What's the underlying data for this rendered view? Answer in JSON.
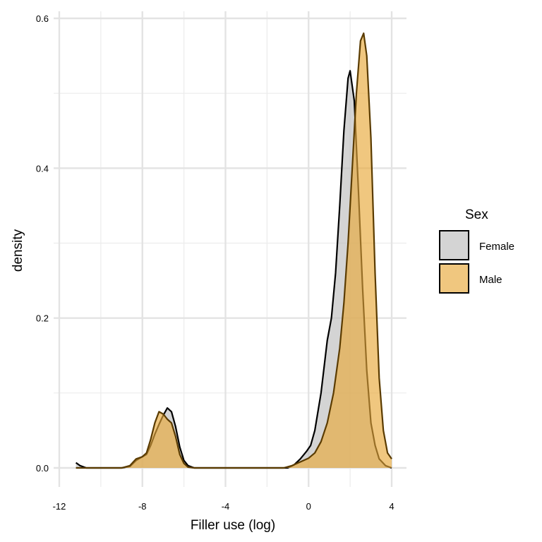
{
  "chart_data": {
    "type": "area",
    "subtype": "density",
    "title": "",
    "xlabel": "Filler use (log)",
    "ylabel": "density",
    "xlim": [
      -12,
      4
    ],
    "ylim": [
      0,
      0.6
    ],
    "x_ticks": [
      -12,
      -8,
      -4,
      0,
      4
    ],
    "x_tick_labels": [
      "-12",
      "-8",
      "-4",
      "0",
      "4"
    ],
    "y_ticks": [
      0,
      0.2,
      0.4,
      0.6
    ],
    "y_tick_labels": [
      "0.0",
      "0.2",
      "0.4",
      "0.6"
    ],
    "grid": true,
    "legend": {
      "title": "Sex",
      "position": "right"
    },
    "series": [
      {
        "name": "Female",
        "color": "#bdbdbd",
        "points": [
          [
            -11.2,
            0.007
          ],
          [
            -11.0,
            0.003
          ],
          [
            -10.7,
            0.0
          ],
          [
            -9.0,
            0.0
          ],
          [
            -8.6,
            0.002
          ],
          [
            -8.3,
            0.01
          ],
          [
            -8.0,
            0.015
          ],
          [
            -7.8,
            0.018
          ],
          [
            -7.6,
            0.03
          ],
          [
            -7.4,
            0.045
          ],
          [
            -7.2,
            0.058
          ],
          [
            -7.0,
            0.07
          ],
          [
            -6.8,
            0.08
          ],
          [
            -6.6,
            0.075
          ],
          [
            -6.4,
            0.055
          ],
          [
            -6.2,
            0.028
          ],
          [
            -6.0,
            0.01
          ],
          [
            -5.8,
            0.003
          ],
          [
            -5.5,
            0.0
          ],
          [
            -1.0,
            0.0
          ],
          [
            -0.7,
            0.004
          ],
          [
            -0.4,
            0.012
          ],
          [
            -0.1,
            0.022
          ],
          [
            0.1,
            0.03
          ],
          [
            0.3,
            0.05
          ],
          [
            0.6,
            0.1
          ],
          [
            0.9,
            0.17
          ],
          [
            1.1,
            0.2
          ],
          [
            1.3,
            0.26
          ],
          [
            1.5,
            0.35
          ],
          [
            1.7,
            0.45
          ],
          [
            1.9,
            0.52
          ],
          [
            2.0,
            0.53
          ],
          [
            2.2,
            0.49
          ],
          [
            2.4,
            0.37
          ],
          [
            2.6,
            0.24
          ],
          [
            2.8,
            0.13
          ],
          [
            3.0,
            0.06
          ],
          [
            3.2,
            0.03
          ],
          [
            3.4,
            0.012
          ],
          [
            3.7,
            0.003
          ],
          [
            4.0,
            0.0
          ]
        ]
      },
      {
        "name": "Male",
        "color": "#e8a93a",
        "points": [
          [
            -11.2,
            0.0
          ],
          [
            -9.0,
            0.0
          ],
          [
            -8.6,
            0.003
          ],
          [
            -8.3,
            0.012
          ],
          [
            -8.0,
            0.015
          ],
          [
            -7.8,
            0.02
          ],
          [
            -7.6,
            0.038
          ],
          [
            -7.4,
            0.06
          ],
          [
            -7.2,
            0.075
          ],
          [
            -7.0,
            0.072
          ],
          [
            -6.8,
            0.065
          ],
          [
            -6.6,
            0.06
          ],
          [
            -6.4,
            0.042
          ],
          [
            -6.2,
            0.018
          ],
          [
            -6.0,
            0.006
          ],
          [
            -5.8,
            0.001
          ],
          [
            -5.5,
            0.0
          ],
          [
            -1.2,
            0.0
          ],
          [
            -0.8,
            0.003
          ],
          [
            -0.4,
            0.008
          ],
          [
            0.0,
            0.013
          ],
          [
            0.3,
            0.02
          ],
          [
            0.6,
            0.035
          ],
          [
            0.9,
            0.06
          ],
          [
            1.2,
            0.1
          ],
          [
            1.5,
            0.16
          ],
          [
            1.7,
            0.22
          ],
          [
            1.9,
            0.3
          ],
          [
            2.1,
            0.4
          ],
          [
            2.3,
            0.5
          ],
          [
            2.5,
            0.57
          ],
          [
            2.65,
            0.58
          ],
          [
            2.8,
            0.55
          ],
          [
            3.0,
            0.44
          ],
          [
            3.2,
            0.26
          ],
          [
            3.4,
            0.12
          ],
          [
            3.6,
            0.05
          ],
          [
            3.8,
            0.02
          ],
          [
            4.0,
            0.012
          ]
        ]
      }
    ]
  }
}
